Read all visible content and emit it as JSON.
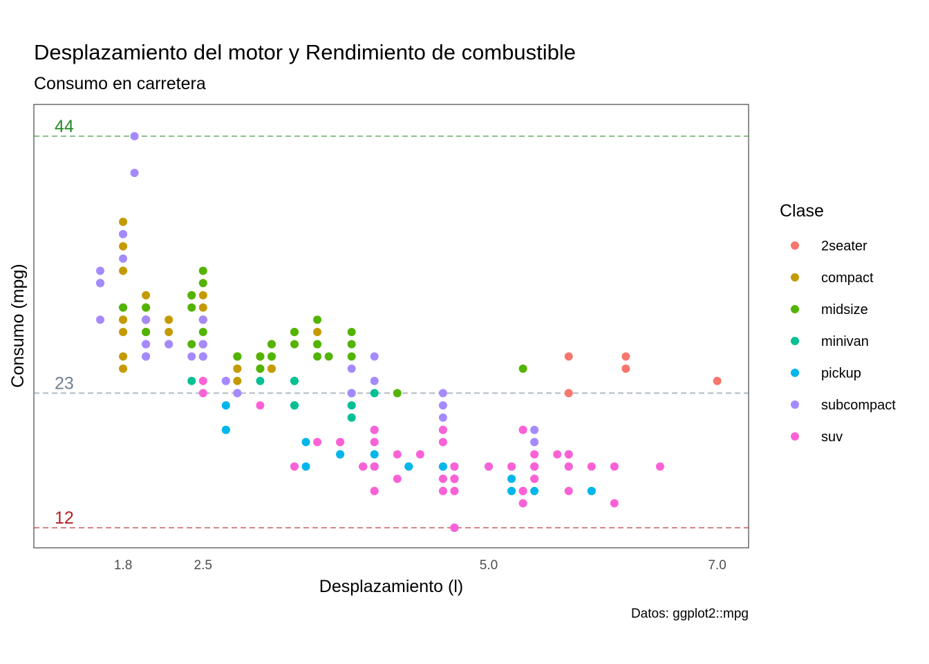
{
  "chart_data": {
    "type": "scatter",
    "title": "Desplazamiento del motor y Rendimiento de combustible",
    "subtitle": "Consumo en carretera",
    "xlabel": "Desplazamiento (l)",
    "ylabel": "Consumo (mpg)",
    "caption": "Datos: ggplot2::mpg",
    "xlim": [
      1.6,
      7.0
    ],
    "ylim": [
      12,
      44
    ],
    "x_ticks": [
      "1.8",
      "2.5",
      "5.0",
      "7.0"
    ],
    "x_tick_values": [
      1.8,
      2.5,
      5.0,
      7.0
    ],
    "grid": false,
    "legend": {
      "title": "Clase",
      "position": "right",
      "entries": [
        {
          "name": "2seater",
          "color": "#F8766D"
        },
        {
          "name": "compact",
          "color": "#C49A00"
        },
        {
          "name": "midsize",
          "color": "#53B400"
        },
        {
          "name": "minivan",
          "color": "#00C094"
        },
        {
          "name": "pickup",
          "color": "#00B6EB"
        },
        {
          "name": "subcompact",
          "color": "#A58AFF"
        },
        {
          "name": "suv",
          "color": "#FB61D7"
        }
      ]
    },
    "reference_lines": [
      {
        "label": "44",
        "y": 44,
        "color": "#228B22"
      },
      {
        "label": "23",
        "y": 23,
        "color": "#708090"
      },
      {
        "label": "12",
        "y": 12,
        "color": "#B22222"
      }
    ],
    "series": [
      {
        "name": "2seater",
        "color": "#F8766D",
        "points": [
          [
            5.7,
            26
          ],
          [
            5.7,
            23
          ],
          [
            6.2,
            26
          ],
          [
            6.2,
            25
          ],
          [
            7.0,
            24
          ]
        ]
      },
      {
        "name": "compact",
        "color": "#C49A00",
        "points": [
          [
            1.8,
            29
          ],
          [
            1.8,
            29
          ],
          [
            2.0,
            31
          ],
          [
            2.0,
            30
          ],
          [
            2.8,
            26
          ],
          [
            2.8,
            26
          ],
          [
            3.1,
            27
          ],
          [
            1.8,
            26
          ],
          [
            1.8,
            25
          ],
          [
            1.8,
            28
          ],
          [
            2.0,
            28
          ],
          [
            2.0,
            29
          ],
          [
            2.8,
            25
          ],
          [
            2.8,
            25
          ],
          [
            3.1,
            25
          ],
          [
            3.1,
            25
          ],
          [
            2.2,
            27
          ],
          [
            2.2,
            29
          ],
          [
            2.4,
            31
          ],
          [
            2.4,
            31
          ],
          [
            3.0,
            26
          ],
          [
            3.0,
            26
          ],
          [
            3.5,
            28
          ],
          [
            1.8,
            33
          ],
          [
            1.8,
            35
          ],
          [
            1.8,
            37
          ],
          [
            2.5,
            27
          ],
          [
            2.5,
            27
          ],
          [
            2.5,
            27
          ],
          [
            2.5,
            31
          ],
          [
            2.5,
            30
          ],
          [
            2.8,
            24
          ],
          [
            2.8,
            23
          ],
          [
            2.0,
            29
          ],
          [
            2.0,
            29
          ],
          [
            2.0,
            28
          ],
          [
            2.0,
            29
          ],
          [
            2.5,
            29
          ],
          [
            2.5,
            29
          ],
          [
            2.2,
            28
          ],
          [
            2.5,
            27
          ],
          [
            2.0,
            26
          ],
          [
            3.0,
            26
          ]
        ]
      },
      {
        "name": "midsize",
        "color": "#53B400",
        "points": [
          [
            2.8,
            26
          ],
          [
            3.1,
            26
          ],
          [
            4.2,
            23
          ],
          [
            2.4,
            30
          ],
          [
            2.4,
            31
          ],
          [
            3.1,
            26
          ],
          [
            3.5,
            29
          ],
          [
            3.6,
            26
          ],
          [
            2.4,
            27
          ],
          [
            3.0,
            25
          ],
          [
            3.3,
            28
          ],
          [
            3.3,
            27
          ],
          [
            3.8,
            27
          ],
          [
            3.8,
            26
          ],
          [
            3.8,
            28
          ],
          [
            5.3,
            25
          ],
          [
            2.5,
            32
          ],
          [
            2.5,
            33
          ],
          [
            2.5,
            29
          ],
          [
            2.5,
            26
          ],
          [
            2.0,
            30
          ],
          [
            2.0,
            30
          ],
          [
            2.0,
            28
          ],
          [
            1.8,
            30
          ],
          [
            1.8,
            30
          ],
          [
            2.5,
            28
          ],
          [
            3.5,
            27
          ],
          [
            3.5,
            27
          ],
          [
            3.5,
            26
          ],
          [
            3.0,
            26
          ],
          [
            3.0,
            25
          ],
          [
            3.1,
            27
          ],
          [
            3.3,
            28
          ],
          [
            2.8,
            26
          ],
          [
            2.0,
            29
          ],
          [
            2.0,
            27
          ]
        ]
      },
      {
        "name": "minivan",
        "color": "#00C094",
        "points": [
          [
            2.4,
            24
          ],
          [
            3.0,
            24
          ],
          [
            3.3,
            22
          ],
          [
            3.3,
            22
          ],
          [
            3.3,
            24
          ],
          [
            3.8,
            22
          ],
          [
            3.8,
            21
          ],
          [
            3.8,
            23
          ],
          [
            4.0,
            23
          ],
          [
            3.3,
            24
          ],
          [
            3.8,
            23
          ]
        ]
      },
      {
        "name": "pickup",
        "color": "#00B6EB",
        "points": [
          [
            2.7,
            20
          ],
          [
            2.7,
            20
          ],
          [
            2.7,
            22
          ],
          [
            3.4,
            19
          ],
          [
            3.4,
            17
          ],
          [
            3.7,
            18
          ],
          [
            3.7,
            18
          ],
          [
            3.9,
            17
          ],
          [
            3.9,
            17
          ],
          [
            4.0,
            18
          ],
          [
            4.0,
            20
          ],
          [
            4.0,
            17
          ],
          [
            4.6,
            17
          ],
          [
            4.6,
            17
          ],
          [
            4.6,
            16
          ],
          [
            4.7,
            16
          ],
          [
            4.7,
            16
          ],
          [
            4.7,
            17
          ],
          [
            5.2,
            17
          ],
          [
            5.2,
            16
          ],
          [
            5.2,
            15
          ],
          [
            5.2,
            15
          ],
          [
            5.4,
            15
          ],
          [
            5.7,
            17
          ],
          [
            5.9,
            15
          ],
          [
            5.9,
            15
          ],
          [
            4.7,
            12
          ],
          [
            4.7,
            12
          ],
          [
            4.7,
            12
          ],
          [
            4.3,
            17
          ],
          [
            4.3,
            17
          ],
          [
            5.0,
            17
          ]
        ]
      },
      {
        "name": "subcompact",
        "color": "#A58AFF",
        "points": [
          [
            1.6,
            33
          ],
          [
            1.6,
            32
          ],
          [
            1.6,
            32
          ],
          [
            1.6,
            29
          ],
          [
            1.6,
            32
          ],
          [
            1.8,
            34
          ],
          [
            1.8,
            36
          ],
          [
            1.8,
            36
          ],
          [
            2.0,
            29
          ],
          [
            2.0,
            26
          ],
          [
            2.0,
            27
          ],
          [
            2.0,
            26
          ],
          [
            2.0,
            27
          ],
          [
            2.8,
            23
          ],
          [
            3.8,
            23
          ],
          [
            4.0,
            24
          ],
          [
            4.6,
            23
          ],
          [
            4.6,
            22
          ],
          [
            4.6,
            21
          ],
          [
            5.4,
            20
          ],
          [
            2.5,
            27
          ],
          [
            2.5,
            26
          ],
          [
            2.5,
            26
          ],
          [
            2.2,
            27
          ],
          [
            2.2,
            27
          ],
          [
            2.5,
            29
          ],
          [
            1.9,
            44
          ],
          [
            1.9,
            41
          ],
          [
            3.8,
            25
          ],
          [
            2.7,
            24
          ],
          [
            2.7,
            24
          ],
          [
            4.0,
            26
          ],
          [
            4.6,
            20
          ],
          [
            5.4,
            19
          ],
          [
            2.4,
            26
          ]
        ]
      },
      {
        "name": "suv",
        "color": "#FB61D7",
        "points": [
          [
            5.3,
            20
          ],
          [
            5.3,
            15
          ],
          [
            5.3,
            20
          ],
          [
            5.7,
            17
          ],
          [
            6.5,
            17
          ],
          [
            4.7,
            17
          ],
          [
            4.7,
            12
          ],
          [
            4.7,
            12
          ],
          [
            4.7,
            16
          ],
          [
            5.2,
            17
          ],
          [
            5.7,
            18
          ],
          [
            5.9,
            17
          ],
          [
            4.0,
            17
          ],
          [
            4.0,
            19
          ],
          [
            4.0,
            20
          ],
          [
            4.2,
            18
          ],
          [
            4.6,
            19
          ],
          [
            4.6,
            16
          ],
          [
            5.4,
            17
          ],
          [
            5.4,
            18
          ],
          [
            5.4,
            17
          ],
          [
            2.5,
            24
          ],
          [
            2.5,
            23
          ],
          [
            4.4,
            18
          ],
          [
            4.0,
            17
          ],
          [
            4.0,
            15
          ],
          [
            4.6,
            15
          ],
          [
            4.6,
            15
          ],
          [
            5.0,
            17
          ],
          [
            4.6,
            20
          ],
          [
            5.4,
            16
          ],
          [
            5.4,
            17
          ],
          [
            3.3,
            17
          ],
          [
            3.3,
            17
          ],
          [
            3.7,
            19
          ],
          [
            3.7,
            19
          ],
          [
            4.7,
            15
          ],
          [
            6.1,
            17
          ],
          [
            5.3,
            14
          ],
          [
            5.7,
            15
          ],
          [
            6.1,
            14
          ],
          [
            3.5,
            19
          ],
          [
            3.0,
            22
          ],
          [
            4.0,
            17
          ],
          [
            4.7,
            16
          ],
          [
            5.7,
            18
          ],
          [
            5.6,
            18
          ],
          [
            3.9,
            17
          ],
          [
            4.7,
            15
          ],
          [
            4.2,
            16
          ],
          [
            5.4,
            16
          ],
          [
            5.3,
            15
          ],
          [
            3.9,
            17
          ],
          [
            4.0,
            15
          ],
          [
            4.7,
            16
          ]
        ]
      }
    ]
  }
}
